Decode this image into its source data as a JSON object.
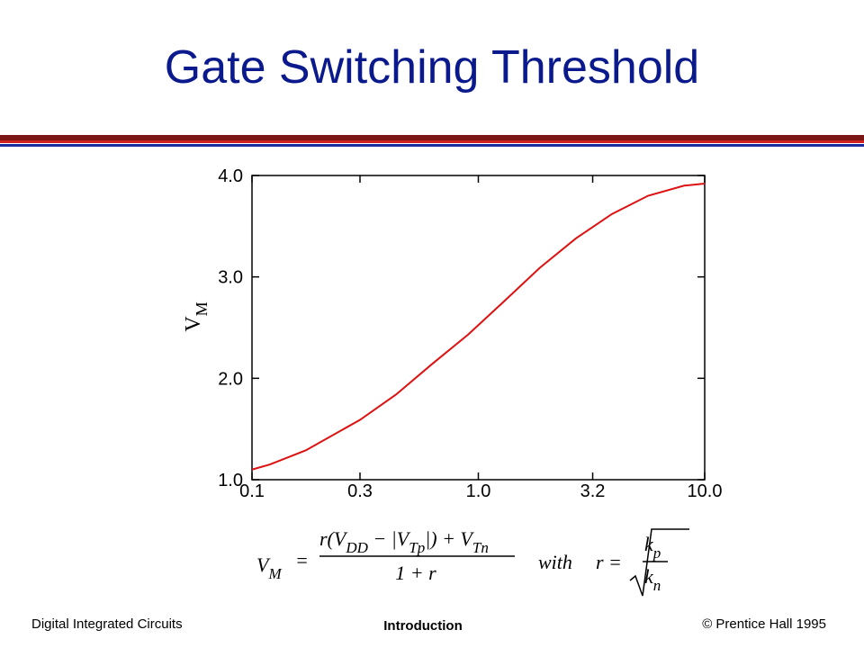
{
  "chart_data": {
    "type": "line",
    "title": "Gate Switching Threshold",
    "y_label": {
      "main": "V",
      "sub": "M"
    },
    "xscale": "log",
    "x": [
      0.1,
      0.12,
      0.173,
      0.3,
      0.433,
      0.624,
      0.9,
      1.3,
      1.87,
      2.7,
      3.89,
      5.62,
      8.11,
      10
    ],
    "series": [
      {
        "color": "#dd1111",
        "values": [
          1.1,
          1.15,
          1.29,
          1.59,
          1.84,
          2.14,
          2.43,
          2.76,
          3.09,
          3.38,
          3.62,
          3.8,
          3.9,
          3.92
        ]
      }
    ],
    "xlim": [
      0.1,
      10
    ],
    "xticks": [
      0.1,
      0.3,
      {
        "value": 1,
        "label": "1.0"
      },
      3.2,
      {
        "value": 10,
        "label": "10.0"
      }
    ],
    "ylim": [
      1,
      4
    ],
    "yticks": [
      {
        "value": 1,
        "label": "1.0"
      },
      {
        "value": 2,
        "label": "2.0"
      },
      {
        "value": 3,
        "label": "3.0"
      },
      {
        "value": 4,
        "label": "4.0"
      }
    ]
  },
  "formula": {
    "lhs": "V",
    "lhs_sub": "M",
    "eq": "=",
    "numerator": [
      "r(V",
      "DD",
      " − |V",
      "Tp",
      "|) + V",
      "Tn"
    ],
    "denominator": "1 + r",
    "with": "with",
    "r_eq": "r =",
    "k_top": "k",
    "k_top_sub": "p",
    "k_bottom": "k",
    "k_bottom_sub": "n"
  },
  "footer": {
    "left": "Digital Integrated Circuits",
    "center": "Introduction",
    "right": "© Prentice Hall 1995"
  }
}
